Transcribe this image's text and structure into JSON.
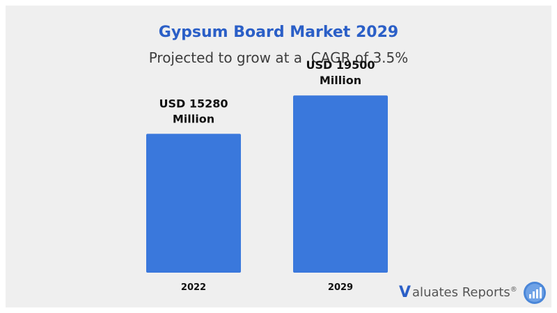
{
  "chart_data": {
    "type": "bar",
    "title": "Gypsum Board Market 2029",
    "subtitle": "Projected to grow at a  CAGR of 3.5%",
    "categories": [
      "2022",
      "2029"
    ],
    "values": [
      15280,
      19500
    ],
    "data_labels": [
      [
        "USD 15280",
        "Million"
      ],
      [
        "USD 19500",
        "Million"
      ]
    ],
    "bar_color": "#3a78dc",
    "ylim": [
      0,
      22500
    ],
    "grid": false,
    "legend": "none"
  },
  "brand": {
    "logo_initial": "V",
    "logo_text": "aluates Reports",
    "logo_reg": "®",
    "logo_icon": "bar-chart-circle-icon",
    "accent_color": "#2b5fc7"
  }
}
